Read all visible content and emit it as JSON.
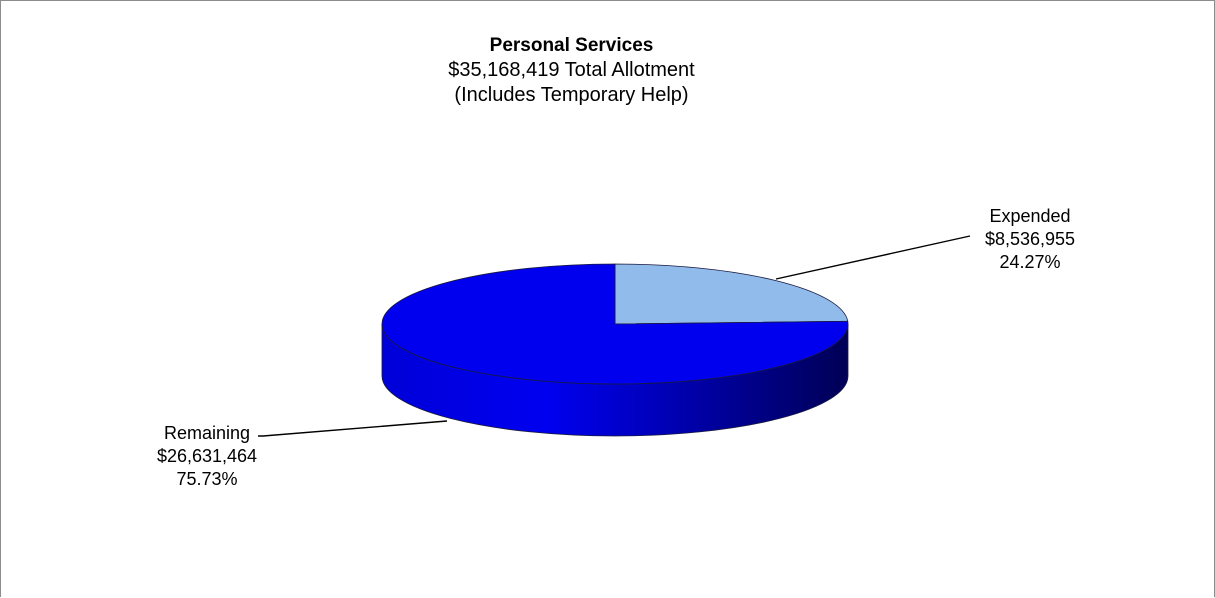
{
  "chart_data": {
    "type": "pie",
    "title": "Personal Services",
    "subtitle_lines": [
      "$35,168,419 Total Allotment",
      "(Includes Temporary Help)"
    ],
    "slices": [
      {
        "name": "Expended",
        "amount_label": "$8,536,955",
        "percent_label": "24.27%",
        "value": 8536955,
        "percent": 24.27,
        "color": "#91bbea"
      },
      {
        "name": "Remaining",
        "amount_label": "$26,631,464",
        "percent_label": "75.73%",
        "value": 26631464,
        "percent": 75.73,
        "color": "#0000ee"
      }
    ],
    "style": "3d"
  }
}
